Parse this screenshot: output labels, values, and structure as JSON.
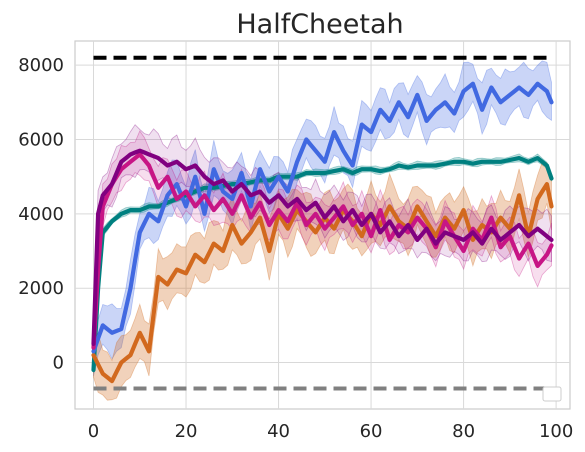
{
  "chart_data": {
    "type": "line",
    "title": "HalfCheetah",
    "xlabel": "",
    "ylabel": "",
    "xlim": [
      -4,
      103
    ],
    "ylim": [
      -1250,
      8650
    ],
    "xticks": [
      0,
      20,
      40,
      60,
      80,
      100
    ],
    "yticks": [
      0,
      2000,
      4000,
      6000,
      8000
    ],
    "xtick_labels": [
      "0",
      "20",
      "40",
      "60",
      "80",
      "100"
    ],
    "ytick_labels": [
      "0",
      "2000",
      "4000",
      "6000",
      "8000"
    ],
    "grid": true,
    "legend": "bottom-right (empty box)",
    "reference_lines": [
      {
        "y": 8200,
        "color": "#000000",
        "style": "dashed"
      },
      {
        "y": -700,
        "color": "#808080",
        "style": "dashed"
      }
    ],
    "series": [
      {
        "color": "#4169e1",
        "knots_x": [
          0,
          2,
          4,
          6,
          8,
          10,
          12,
          14,
          16,
          18,
          20,
          22,
          24,
          26,
          28,
          30,
          32,
          34,
          36,
          38,
          40,
          42,
          44,
          46,
          48,
          50,
          52,
          54,
          56,
          58,
          60,
          62,
          64,
          66,
          68,
          70,
          72,
          74,
          76,
          78,
          80,
          82,
          84,
          86,
          88,
          90,
          92,
          94,
          96,
          98,
          99
        ],
        "knots_y": [
          300,
          1000,
          800,
          900,
          2000,
          3500,
          4000,
          3800,
          4500,
          4800,
          4200,
          5000,
          4000,
          5200,
          4600,
          4400,
          5100,
          4200,
          5200,
          4600,
          5000,
          4600,
          5400,
          6000,
          5700,
          5400,
          6200,
          5700,
          5300,
          6400,
          6200,
          6800,
          6500,
          7000,
          6600,
          7200,
          6500,
          6800,
          7000,
          6700,
          7300,
          7500,
          6800,
          7400,
          7000,
          7200,
          7400,
          7200,
          7500,
          7300,
          7000
        ],
        "band": 800,
        "alpha": 0.28
      },
      {
        "color": "#008080",
        "knots_x": [
          0,
          1,
          2,
          4,
          6,
          8,
          10,
          12,
          14,
          16,
          18,
          20,
          22,
          24,
          26,
          28,
          30,
          32,
          34,
          36,
          38,
          40,
          42,
          44,
          46,
          48,
          50,
          52,
          54,
          56,
          58,
          60,
          62,
          64,
          66,
          68,
          70,
          72,
          74,
          76,
          78,
          80,
          82,
          84,
          86,
          88,
          90,
          92,
          94,
          96,
          98,
          99
        ],
        "knots_y": [
          -200,
          2000,
          3500,
          3800,
          4000,
          4100,
          4100,
          4200,
          4200,
          4300,
          4400,
          4500,
          4600,
          4700,
          4700,
          4750,
          4800,
          4800,
          4850,
          4900,
          4900,
          5000,
          5000,
          5000,
          5100,
          5100,
          5100,
          5150,
          5200,
          5100,
          5200,
          5200,
          5150,
          5200,
          5300,
          5250,
          5300,
          5300,
          5300,
          5350,
          5400,
          5400,
          5350,
          5400,
          5400,
          5400,
          5450,
          5500,
          5400,
          5500,
          5300,
          4950
        ],
        "band": 120,
        "alpha": 0.25
      },
      {
        "color": "#d2691e",
        "knots_x": [
          0,
          2,
          4,
          6,
          8,
          10,
          12,
          14,
          16,
          18,
          20,
          22,
          24,
          26,
          28,
          30,
          32,
          34,
          36,
          38,
          40,
          42,
          44,
          46,
          48,
          50,
          52,
          54,
          56,
          58,
          60,
          62,
          64,
          66,
          68,
          70,
          72,
          74,
          76,
          78,
          80,
          82,
          84,
          86,
          88,
          90,
          92,
          94,
          96,
          98,
          99
        ],
        "knots_y": [
          200,
          -300,
          -500,
          0,
          200,
          800,
          300,
          2300,
          2100,
          2500,
          2400,
          2900,
          2700,
          3200,
          3000,
          3700,
          3200,
          3500,
          3900,
          3000,
          4000,
          3600,
          4100,
          3800,
          3500,
          3900,
          3600,
          4100,
          3800,
          3400,
          4000,
          3700,
          4200,
          3800,
          3600,
          4200,
          3800,
          3400,
          3900,
          3600,
          4100,
          3300,
          3700,
          3500,
          3900,
          3600,
          4500,
          3400,
          4400,
          4800,
          4200
        ],
        "band": 900,
        "alpha": 0.3
      },
      {
        "color": "#c71585",
        "knots_x": [
          0,
          1,
          2,
          4,
          6,
          8,
          10,
          12,
          14,
          16,
          18,
          20,
          22,
          24,
          26,
          28,
          30,
          32,
          34,
          36,
          38,
          40,
          42,
          44,
          46,
          48,
          50,
          52,
          54,
          56,
          58,
          60,
          62,
          64,
          66,
          68,
          70,
          72,
          74,
          76,
          78,
          80,
          82,
          84,
          86,
          88,
          90,
          92,
          94,
          96,
          98,
          99
        ],
        "knots_y": [
          400,
          2500,
          4200,
          4800,
          5200,
          5400,
          5600,
          5300,
          4700,
          5000,
          4400,
          4600,
          4200,
          4500,
          4100,
          4400,
          4000,
          4500,
          3900,
          4300,
          3700,
          4100,
          3800,
          4300,
          3700,
          4000,
          3600,
          3900,
          4200,
          3700,
          4000,
          3400,
          4100,
          3300,
          3700,
          3500,
          3900,
          3600,
          3100,
          3800,
          3400,
          3000,
          3600,
          3300,
          3900,
          3100,
          3400,
          2800,
          3200,
          2600,
          2900,
          3150
        ],
        "band": 700,
        "alpha": 0.14
      },
      {
        "color": "#800080",
        "knots_x": [
          0,
          1,
          2,
          4,
          6,
          8,
          10,
          12,
          14,
          16,
          18,
          20,
          22,
          24,
          26,
          28,
          30,
          32,
          34,
          36,
          38,
          40,
          42,
          44,
          46,
          48,
          50,
          52,
          54,
          56,
          58,
          60,
          62,
          64,
          66,
          68,
          70,
          72,
          74,
          76,
          78,
          80,
          82,
          84,
          86,
          88,
          90,
          92,
          94,
          96,
          98,
          99
        ],
        "knots_y": [
          500,
          4000,
          4500,
          4800,
          5400,
          5600,
          5700,
          5600,
          5500,
          5300,
          5400,
          5200,
          5300,
          5000,
          4800,
          4900,
          4600,
          4800,
          4500,
          4600,
          4300,
          4500,
          4200,
          4400,
          4100,
          4300,
          3900,
          4200,
          3800,
          4100,
          3700,
          4000,
          3500,
          3800,
          3400,
          3700,
          3300,
          3600,
          3200,
          3500,
          3400,
          3300,
          3500,
          3200,
          3600,
          3300,
          3500,
          3700,
          3400,
          3600,
          3400,
          3300
        ],
        "band": 750,
        "alpha": 0.12
      }
    ]
  }
}
